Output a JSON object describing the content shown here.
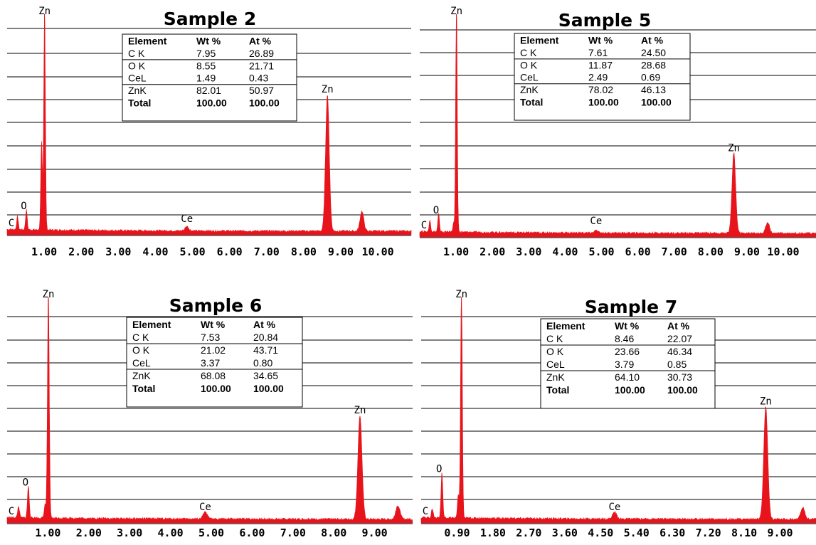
{
  "chart_data": [
    {
      "type": "line",
      "title": "Sample 2",
      "x_ticks": [
        "1.00",
        "2.00",
        "3.00",
        "4.00",
        "5.00",
        "6.00",
        "7.00",
        "8.00",
        "9.00",
        "10.00"
      ],
      "xlim": [
        0,
        10.9
      ],
      "grid": true,
      "series": [
        {
          "color": "#e8141c",
          "peaks": [
            {
              "x": 0.28,
              "y": 6
            },
            {
              "x": 0.52,
              "y": 9
            },
            {
              "x": 0.93,
              "y": 40
            },
            {
              "x": 1.01,
              "y": 100
            },
            {
              "x": 4.85,
              "y": 2
            },
            {
              "x": 8.64,
              "y": 62
            },
            {
              "x": 9.57,
              "y": 9
            }
          ]
        }
      ],
      "peak_labels": [
        {
          "text": "Zn",
          "x": 1.01
        },
        {
          "text": "O",
          "x": 0.45
        },
        {
          "text": "C",
          "x": 0.15
        },
        {
          "text": "Ce",
          "x": 4.85
        },
        {
          "text": "Zn",
          "x": 8.64
        }
      ],
      "table": {
        "headers": [
          "Element",
          "Wt %",
          "At %"
        ],
        "rows": [
          [
            "C K",
            "7.95",
            "26.89"
          ],
          [
            "O K",
            "8.55",
            "21.71"
          ],
          [
            "CeL",
            "1.49",
            "0.43"
          ],
          [
            "ZnK",
            "82.01",
            "50.97"
          ]
        ],
        "total": [
          "Total",
          "100.00",
          "100.00"
        ]
      }
    },
    {
      "type": "line",
      "title": "Sample 5",
      "x_ticks": [
        "1.00",
        "2.00",
        "3.00",
        "4.00",
        "5.00",
        "6.00",
        "7.00",
        "8.00",
        "9.00",
        "10.00"
      ],
      "xlim": [
        0,
        10.9
      ],
      "grid": true,
      "series": [
        {
          "color": "#e8141c",
          "peaks": [
            {
              "x": 0.28,
              "y": 5
            },
            {
              "x": 0.52,
              "y": 8
            },
            {
              "x": 0.93,
              "y": 4
            },
            {
              "x": 1.01,
              "y": 100
            },
            {
              "x": 4.85,
              "y": 1
            },
            {
              "x": 8.64,
              "y": 36
            },
            {
              "x": 9.57,
              "y": 5
            }
          ]
        }
      ],
      "peak_labels": [
        {
          "text": "Zn",
          "x": 1.01
        },
        {
          "text": "O",
          "x": 0.45
        },
        {
          "text": "C",
          "x": 0.15
        },
        {
          "text": "Ce",
          "x": 4.85
        },
        {
          "text": "Zn",
          "x": 8.64
        }
      ],
      "table": {
        "headers": [
          "Element",
          "Wt %",
          "At %"
        ],
        "rows": [
          [
            "C K",
            "7.61",
            "24.50"
          ],
          [
            "O K",
            "11.87",
            "28.68"
          ],
          [
            "CeL",
            "2.49",
            "0.69"
          ],
          [
            "ZnK",
            "78.02",
            "46.13"
          ]
        ],
        "total": [
          "Total",
          "100.00",
          "100.00"
        ]
      }
    },
    {
      "type": "line",
      "title": "Sample 6",
      "x_ticks": [
        "1.00",
        "2.00",
        "3.00",
        "4.00",
        "5.00",
        "6.00",
        "7.00",
        "8.00",
        "9.00"
      ],
      "xlim": [
        0,
        9.93
      ],
      "grid": true,
      "series": [
        {
          "color": "#e8141c",
          "peaks": [
            {
              "x": 0.28,
              "y": 5
            },
            {
              "x": 0.52,
              "y": 14
            },
            {
              "x": 0.93,
              "y": 6
            },
            {
              "x": 1.01,
              "y": 100
            },
            {
              "x": 4.85,
              "y": 3
            },
            {
              "x": 8.64,
              "y": 46
            },
            {
              "x": 9.57,
              "y": 6
            }
          ]
        }
      ],
      "peak_labels": [
        {
          "text": "Zn",
          "x": 1.01
        },
        {
          "text": "O",
          "x": 0.45
        },
        {
          "text": "C",
          "x": 0.15
        },
        {
          "text": "Ce",
          "x": 4.85
        },
        {
          "text": "Zn",
          "x": 8.64
        }
      ],
      "table": {
        "headers": [
          "Element",
          "Wt %",
          "At %"
        ],
        "rows": [
          [
            "C K",
            "7.53",
            "20.84"
          ],
          [
            "O K",
            "21.02",
            "43.71"
          ],
          [
            "CeL",
            "3.37",
            "0.80"
          ],
          [
            "ZnK",
            "68.08",
            "34.65"
          ]
        ],
        "total": [
          "Total",
          "100.00",
          "100.00"
        ]
      }
    },
    {
      "type": "line",
      "title": "Sample 7",
      "x_ticks": [
        "0.90",
        "1.80",
        "2.70",
        "3.60",
        "4.50",
        "5.40",
        "6.30",
        "7.20",
        "8.10",
        "9.00"
      ],
      "xlim": [
        0,
        9.9
      ],
      "grid": true,
      "series": [
        {
          "color": "#e8141c",
          "peaks": [
            {
              "x": 0.28,
              "y": 4
            },
            {
              "x": 0.52,
              "y": 20
            },
            {
              "x": 0.93,
              "y": 10
            },
            {
              "x": 1.01,
              "y": 100
            },
            {
              "x": 4.85,
              "y": 3
            },
            {
              "x": 8.64,
              "y": 50
            },
            {
              "x": 9.57,
              "y": 5
            }
          ]
        }
      ],
      "peak_labels": [
        {
          "text": "Zn",
          "x": 1.01
        },
        {
          "text": "O",
          "x": 0.45
        },
        {
          "text": "C",
          "x": 0.15
        },
        {
          "text": "Ce",
          "x": 4.85
        },
        {
          "text": "Zn",
          "x": 8.64
        }
      ],
      "table": {
        "headers": [
          "Element",
          "Wt %",
          "At %"
        ],
        "rows": [
          [
            "C K",
            "8.46",
            "22.07"
          ],
          [
            "O K",
            "23.66",
            "46.34"
          ],
          [
            "CeL",
            "3.79",
            "0.85"
          ],
          [
            "ZnK",
            "64.10",
            "30.73"
          ]
        ],
        "total": [
          "Total",
          "100.00",
          "100.00"
        ]
      }
    }
  ]
}
